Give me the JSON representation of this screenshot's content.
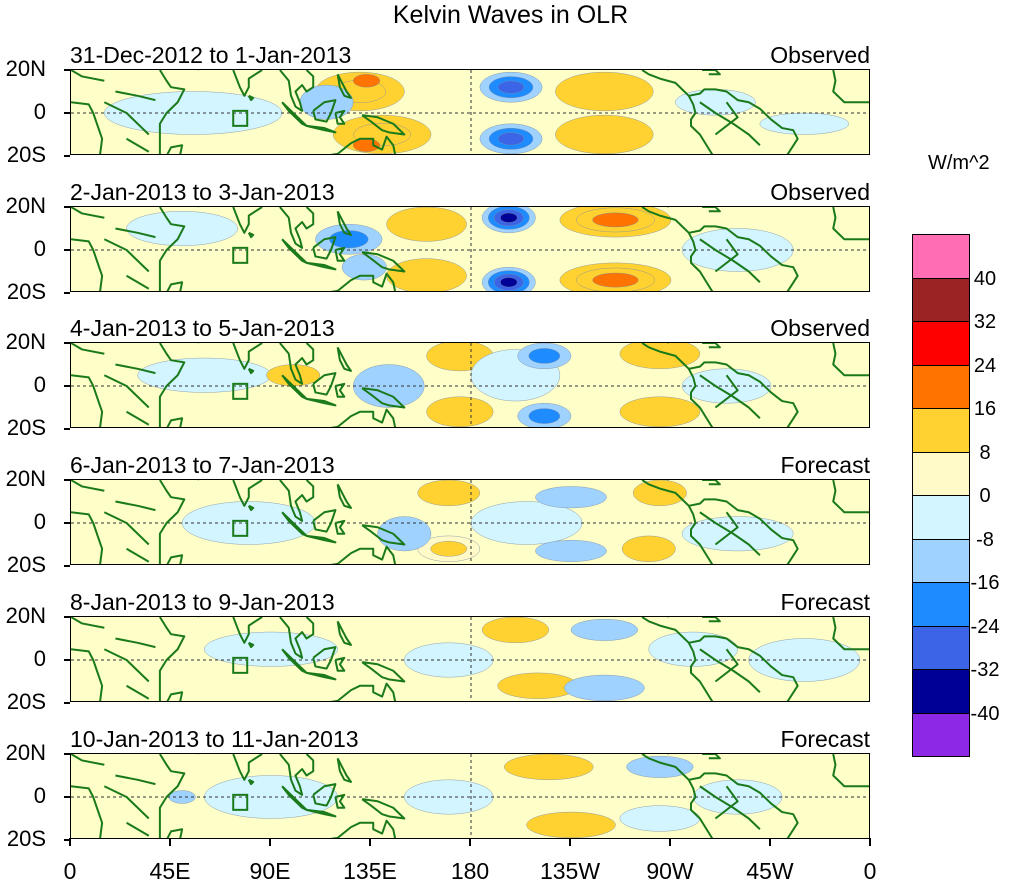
{
  "title": "Kelvin Waves in OLR",
  "units": "W/m^2",
  "lat_labels": [
    "20N",
    "0",
    "20S"
  ],
  "lon_labels": [
    "0",
    "45E",
    "90E",
    "135E",
    "180",
    "135W",
    "90W",
    "45W",
    "0"
  ],
  "panels": [
    {
      "period": "31-Dec-2012 to 1-Jan-2013",
      "kind": "Observed"
    },
    {
      "period": "2-Jan-2013 to 3-Jan-2013",
      "kind": "Observed"
    },
    {
      "period": "4-Jan-2013 to 5-Jan-2013",
      "kind": "Observed"
    },
    {
      "period": "6-Jan-2013 to 7-Jan-2013",
      "kind": "Forecast"
    },
    {
      "period": "8-Jan-2013 to 9-Jan-2013",
      "kind": "Forecast"
    },
    {
      "period": "10-Jan-2013 to 11-Jan-2013",
      "kind": "Forecast"
    }
  ],
  "colorbar": {
    "labels": [
      "40",
      "32",
      "24",
      "16",
      "8",
      "0",
      "-8",
      "-16",
      "-24",
      "-32",
      "-40"
    ],
    "colors": [
      "#ff6eb4",
      "#9b2323",
      "#ff0000",
      "#ff7300",
      "#ffd232",
      "#fffac8",
      "#d2f5ff",
      "#a0d2ff",
      "#1e8cff",
      "#3c64e6",
      "#000096",
      "#8c28e6"
    ]
  },
  "colors": {
    "land": "#1a7a1a",
    "equator": "#333333"
  }
}
